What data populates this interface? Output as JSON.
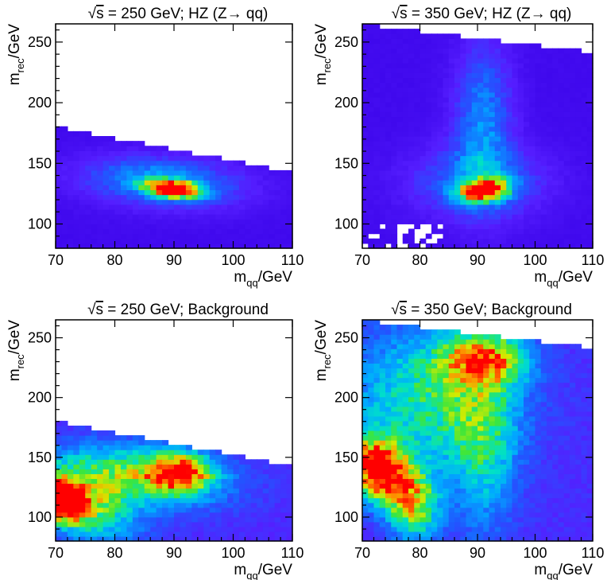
{
  "chart_data": [
    {
      "type": "heatmap",
      "title_prefix": "s",
      "title_rest": " = 250 GeV; HZ (Z→ qq)",
      "xlabel_main": "m",
      "xlabel_sub": "qq",
      "xlabel_unit": "/GeV",
      "ylabel_main": "m",
      "ylabel_sub": "rec",
      "ylabel_unit": "/GeV",
      "xlim": [
        70,
        110
      ],
      "ylim": [
        80,
        265
      ],
      "x_ticks": [
        70,
        80,
        90,
        100,
        110
      ],
      "y_ticks": [
        100,
        150,
        200,
        250
      ],
      "grid": false,
      "kinematic_boundary": {
        "x": [
          70,
          110
        ],
        "y": [
          180,
          143
        ]
      },
      "peaks": [
        {
          "x": 90,
          "y": 129,
          "intensity": 1.0,
          "sx": 3.2,
          "sy": 5,
          "rho": -0.3
        },
        {
          "x": 88,
          "y": 135,
          "intensity": 0.35,
          "sx": 9,
          "sy": 14,
          "rho": -0.2
        }
      ],
      "background_level": 0.04
    },
    {
      "type": "heatmap",
      "title_prefix": "s",
      "title_rest": " = 350 GeV; HZ (Z→ qq)",
      "xlabel_main": "m",
      "xlabel_sub": "qq",
      "xlabel_unit": "/GeV",
      "ylabel_main": "m",
      "ylabel_sub": "rec",
      "ylabel_unit": "/GeV",
      "xlim": [
        70,
        110
      ],
      "ylim": [
        80,
        265
      ],
      "x_ticks": [
        70,
        80,
        90,
        100,
        110
      ],
      "y_ticks": [
        100,
        150,
        200,
        250
      ],
      "grid": false,
      "kinematic_boundary": {
        "x": [
          70,
          110
        ],
        "y": [
          265,
          242
        ]
      },
      "peaks": [
        {
          "x": 91,
          "y": 128,
          "intensity": 1.0,
          "sx": 2.8,
          "sy": 6,
          "rho": 0.2
        },
        {
          "x": 91,
          "y": 185,
          "intensity": 0.28,
          "sx": 3.5,
          "sy": 45,
          "rho": 0.0
        },
        {
          "x": 90,
          "y": 135,
          "intensity": 0.25,
          "sx": 8,
          "sy": 20,
          "rho": 0.0
        }
      ],
      "background_level": 0.04,
      "empty_region": {
        "x": [
          70,
          84
        ],
        "y": [
          80,
          100
        ]
      }
    },
    {
      "type": "heatmap",
      "title_prefix": "s",
      "title_rest": " = 250 GeV; Background",
      "xlabel_main": "m",
      "xlabel_sub": "qq",
      "xlabel_unit": "/GeV",
      "ylabel_main": "m",
      "ylabel_sub": "rec",
      "ylabel_unit": "/GeV",
      "xlim": [
        70,
        110
      ],
      "ylim": [
        80,
        265
      ],
      "x_ticks": [
        70,
        80,
        90,
        100,
        110
      ],
      "y_ticks": [
        100,
        150,
        200,
        250
      ],
      "grid": false,
      "kinematic_boundary": {
        "x": [
          70,
          110
        ],
        "y": [
          180,
          143
        ]
      },
      "peaks": [
        {
          "x": 70.5,
          "y": 115,
          "intensity": 1.0,
          "sx": 3,
          "sy": 12,
          "rho": -0.3
        },
        {
          "x": 91,
          "y": 138,
          "intensity": 0.72,
          "sx": 3.5,
          "sy": 10,
          "rho": 0.0
        },
        {
          "x": 84,
          "y": 135,
          "intensity": 0.5,
          "sx": 10,
          "sy": 18,
          "rho": -0.2
        },
        {
          "x": 75,
          "y": 110,
          "intensity": 0.42,
          "sx": 6,
          "sy": 22,
          "rho": -0.4
        }
      ],
      "background_level": 0.14
    },
    {
      "type": "heatmap",
      "title_prefix": "s",
      "title_rest": " = 350 GeV; Background",
      "xlabel_main": "m",
      "xlabel_sub": "qq",
      "xlabel_unit": "/GeV",
      "ylabel_main": "m",
      "ylabel_sub": "rec",
      "ylabel_unit": "/GeV",
      "xlim": [
        70,
        110
      ],
      "ylim": [
        80,
        265
      ],
      "x_ticks": [
        70,
        80,
        90,
        100,
        110
      ],
      "y_ticks": [
        100,
        150,
        200,
        250
      ],
      "grid": false,
      "kinematic_boundary": {
        "x": [
          70,
          110
        ],
        "y": [
          265,
          242
        ]
      },
      "peaks": [
        {
          "x": 73,
          "y": 140,
          "intensity": 1.0,
          "sx": 3.5,
          "sy": 18,
          "rho": -0.2
        },
        {
          "x": 79,
          "y": 110,
          "intensity": 0.55,
          "sx": 3,
          "sy": 20,
          "rho": 0.0
        },
        {
          "x": 91,
          "y": 232,
          "intensity": 0.6,
          "sx": 5,
          "sy": 15,
          "rho": 0.0
        },
        {
          "x": 82,
          "y": 200,
          "intensity": 0.4,
          "sx": 10,
          "sy": 40,
          "rho": 0.0
        },
        {
          "x": 91,
          "y": 160,
          "intensity": 0.3,
          "sx": 4,
          "sy": 50,
          "rho": 0.0
        }
      ],
      "background_level": 0.15
    }
  ]
}
